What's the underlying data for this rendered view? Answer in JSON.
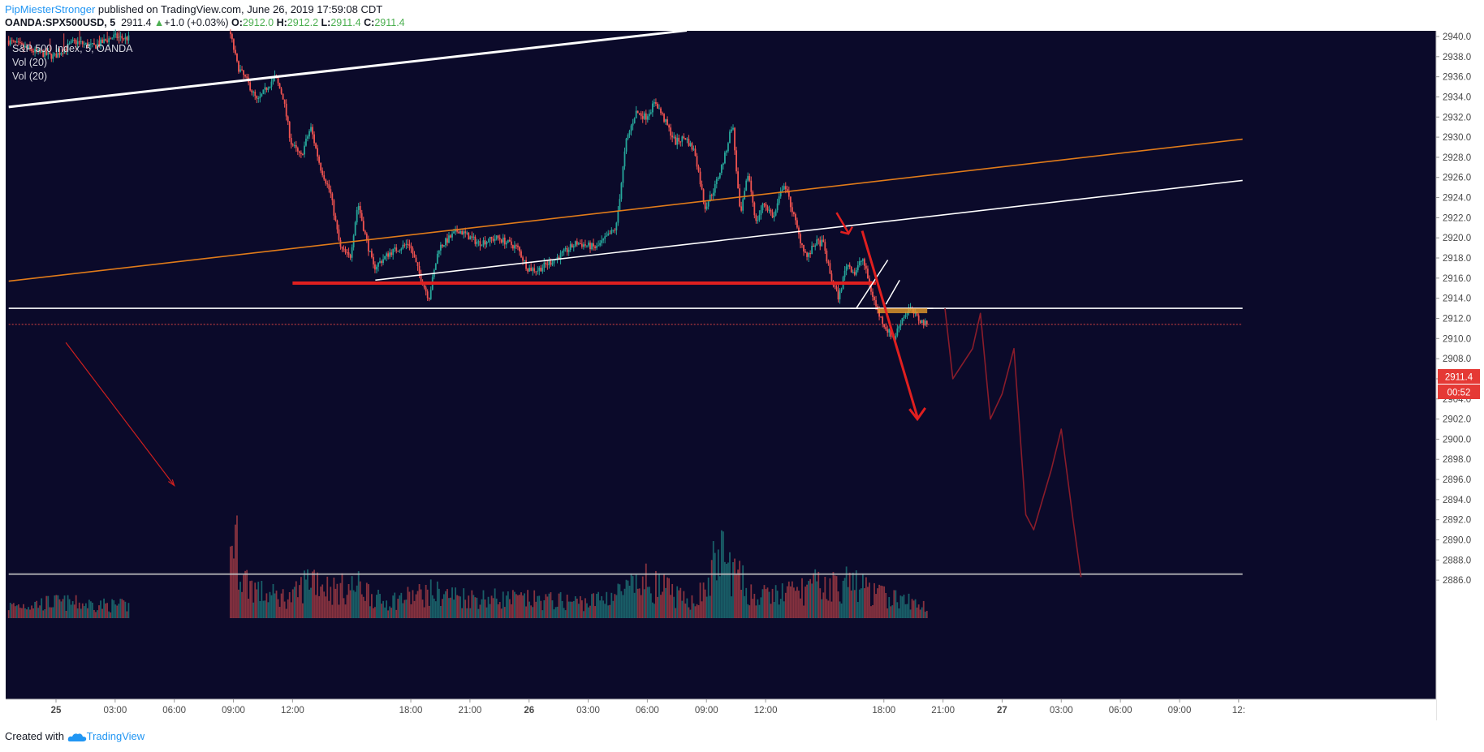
{
  "header": {
    "author": "PipMiesterStronger",
    "published_text": "published on TradingView.com, June 26, 2019 17:59:08 CDT"
  },
  "symbol_line": {
    "symbol": "OANDA:SPX500USD, 5",
    "last": "2911.4",
    "change": "+1.0 (+0.03%)",
    "o_label": "O:",
    "o_value": "2912.0",
    "h_label": "H:",
    "h_value": "2912.2",
    "l_label": "L:",
    "l_value": "2911.4",
    "c_label": "C:",
    "c_value": "2911.4"
  },
  "legend": {
    "title": "S&P 500 Index, 5, OANDA",
    "ind1": "Vol (20)",
    "ind2": "Vol (20)"
  },
  "price_tags": {
    "price": "2911.4",
    "countdown": "00:52"
  },
  "footer": {
    "created": "Created with",
    "brand": "TradingView"
  },
  "chart_data": {
    "type": "candlestick",
    "title": "S&P 500 Index, 5, OANDA",
    "ylim": [
      2884.5,
      2941.0
    ],
    "y_ticks": [
      "2940.0",
      "2938.0",
      "2936.0",
      "2934.0",
      "2932.0",
      "2930.0",
      "2928.0",
      "2926.0",
      "2924.0",
      "2922.0",
      "2920.0",
      "2918.0",
      "2916.0",
      "2914.0",
      "2912.0",
      "2910.0",
      "2908.0",
      "2906.0",
      "2904.0",
      "2902.0",
      "2900.0",
      "2898.0",
      "2896.0",
      "2894.0",
      "2892.0",
      "2890.0",
      "2888.0",
      "2886.0"
    ],
    "x_ticks": [
      {
        "label": "25",
        "t": 0.0
      },
      {
        "label": "03:00",
        "t": 3.0
      },
      {
        "label": "06:00",
        "t": 6.0
      },
      {
        "label": "09:00",
        "t": 9.0
      },
      {
        "label": "12:00",
        "t": 12.0
      },
      {
        "label": "18:00",
        "t": 18.0
      },
      {
        "label": "21:00",
        "t": 21.0
      },
      {
        "label": "26",
        "t": 24.0
      },
      {
        "label": "03:00",
        "t": 27.0
      },
      {
        "label": "06:00",
        "t": 30.0
      },
      {
        "label": "09:00",
        "t": 33.0
      },
      {
        "label": "12:00",
        "t": 36.0
      },
      {
        "label": "18:00",
        "t": 42.0
      },
      {
        "label": "21:00",
        "t": 45.0
      },
      {
        "label": "27",
        "t": 48.0
      },
      {
        "label": "03:00",
        "t": 51.0
      },
      {
        "label": "06:00",
        "t": 54.0
      },
      {
        "label": "09:00",
        "t": 57.0
      },
      {
        "label": "12:",
        "t": 60.0
      }
    ],
    "price_path": [
      [
        -2.4,
        2939.6
      ],
      [
        -1.0,
        2938.5
      ],
      [
        0.0,
        2938.0
      ],
      [
        1.0,
        2939.5
      ],
      [
        2.0,
        2939.0
      ],
      [
        3.0,
        2940.0
      ],
      [
        3.6,
        2939.8
      ],
      [
        8.9,
        2940.5
      ],
      [
        9.3,
        2937.0
      ],
      [
        9.8,
        2935.5
      ],
      [
        10.3,
        2933.5
      ],
      [
        10.8,
        2935.0
      ],
      [
        11.2,
        2936.0
      ],
      [
        11.6,
        2934.0
      ],
      [
        12.0,
        2929.5
      ],
      [
        12.5,
        2928.0
      ],
      [
        13.0,
        2931.0
      ],
      [
        13.5,
        2927.0
      ],
      [
        14.0,
        2924.5
      ],
      [
        14.5,
        2919.0
      ],
      [
        15.0,
        2918.0
      ],
      [
        15.4,
        2923.5
      ],
      [
        15.8,
        2920.0
      ],
      [
        16.2,
        2917.0
      ],
      [
        17.0,
        2918.5
      ],
      [
        18.0,
        2919.5
      ],
      [
        18.5,
        2916.5
      ],
      [
        19.0,
        2914.0
      ],
      [
        19.5,
        2919.0
      ],
      [
        20.5,
        2920.8
      ],
      [
        21.5,
        2919.5
      ],
      [
        22.5,
        2920.0
      ],
      [
        23.5,
        2919.0
      ],
      [
        24.0,
        2917.0
      ],
      [
        24.5,
        2916.8
      ],
      [
        25.5,
        2918.0
      ],
      [
        26.5,
        2919.5
      ],
      [
        27.5,
        2919.0
      ],
      [
        28.5,
        2921.0
      ],
      [
        29.0,
        2929.5
      ],
      [
        29.5,
        2932.5
      ],
      [
        30.0,
        2932.0
      ],
      [
        30.5,
        2933.5
      ],
      [
        31.0,
        2931.5
      ],
      [
        31.5,
        2929.5
      ],
      [
        32.0,
        2930.0
      ],
      [
        32.5,
        2928.5
      ],
      [
        33.0,
        2923.0
      ],
      [
        33.5,
        2925.0
      ],
      [
        34.0,
        2928.0
      ],
      [
        34.4,
        2931.5
      ],
      [
        34.8,
        2922.0
      ],
      [
        35.2,
        2926.5
      ],
      [
        35.6,
        2921.5
      ],
      [
        36.0,
        2923.5
      ],
      [
        36.5,
        2922.0
      ],
      [
        37.0,
        2925.5
      ],
      [
        37.4,
        2923.0
      ],
      [
        37.8,
        2920.0
      ],
      [
        38.2,
        2918.0
      ],
      [
        38.6,
        2919.5
      ],
      [
        39.0,
        2919.5
      ],
      [
        39.4,
        2916.0
      ],
      [
        39.8,
        2914.0
      ],
      [
        40.2,
        2917.5
      ],
      [
        40.6,
        2916.5
      ],
      [
        41.0,
        2918.0
      ],
      [
        41.4,
        2915.0
      ],
      [
        41.8,
        2912.5
      ],
      [
        42.2,
        2911.0
      ],
      [
        42.6,
        2910.0
      ],
      [
        43.0,
        2912.0
      ],
      [
        43.4,
        2913.0
      ],
      [
        43.8,
        2912.0
      ],
      [
        44.2,
        2911.4
      ]
    ],
    "volume_path": [
      [
        -2.4,
        1.5
      ],
      [
        0.0,
        2.0
      ],
      [
        3.0,
        1.6
      ],
      [
        6.0,
        1.4
      ],
      [
        8.5,
        2.5
      ],
      [
        9.0,
        11.0
      ],
      [
        9.5,
        5.0
      ],
      [
        10.5,
        3.0
      ],
      [
        12.0,
        2.5
      ],
      [
        13.0,
        5.5
      ],
      [
        14.0,
        3.5
      ],
      [
        15.5,
        4.0
      ],
      [
        16.5,
        2.0
      ],
      [
        19.0,
        3.2
      ],
      [
        21.0,
        2.6
      ],
      [
        24.0,
        2.3
      ],
      [
        27.0,
        2.0
      ],
      [
        29.0,
        3.5
      ],
      [
        30.0,
        4.5
      ],
      [
        31.0,
        3.5
      ],
      [
        32.0,
        2.0
      ],
      [
        33.0,
        3.5
      ],
      [
        33.6,
        8.5
      ],
      [
        34.0,
        7.0
      ],
      [
        34.6,
        5.0
      ],
      [
        35.5,
        2.5
      ],
      [
        36.5,
        3.0
      ],
      [
        37.5,
        3.3
      ],
      [
        38.5,
        4.0
      ],
      [
        39.5,
        4.0
      ],
      [
        40.5,
        4.5
      ],
      [
        41.5,
        3.0
      ],
      [
        42.5,
        2.5
      ],
      [
        44.2,
        1.5
      ]
    ],
    "volume_ylim": [
      0,
      14
    ],
    "trend_lines": [
      {
        "name": "upper-channel-white",
        "color": "#ffffff",
        "points": [
          [
            -2.4,
            2933.0
          ],
          [
            32.0,
            2940.6
          ]
        ]
      },
      {
        "name": "orange-channel",
        "color": "#e07b1a",
        "points": [
          [
            -2.4,
            2915.7
          ],
          [
            60.2,
            2929.8
          ]
        ]
      },
      {
        "name": "lower-channel-white",
        "color": "#ffffff",
        "points": [
          [
            16.2,
            2915.8
          ],
          [
            60.2,
            2925.7
          ]
        ]
      },
      {
        "name": "red-support",
        "color": "#e01f1f",
        "points": [
          [
            12.0,
            2915.5
          ],
          [
            41.6,
            2915.5
          ]
        ]
      },
      {
        "name": "white-horizontal",
        "color": "#ffffff",
        "points": [
          [
            -2.4,
            2913.0
          ],
          [
            60.2,
            2913.0
          ]
        ]
      },
      {
        "name": "volume-level",
        "color": "#c8c8c8",
        "points": [
          [
            -2.4,
            2886.6
          ],
          [
            60.2,
            2886.6
          ]
        ]
      },
      {
        "name": "price-level",
        "color": "#d44",
        "points": [
          [
            -2.4,
            2911.4
          ],
          [
            60.2,
            2911.4
          ]
        ]
      }
    ],
    "projection_path": [
      [
        45.1,
        2913.0
      ],
      [
        45.5,
        2906.0
      ],
      [
        46.5,
        2909.0
      ],
      [
        46.9,
        2912.5
      ],
      [
        47.4,
        2902.0
      ],
      [
        48.0,
        2904.5
      ],
      [
        48.6,
        2909.0
      ],
      [
        49.2,
        2892.5
      ],
      [
        49.6,
        2891.0
      ],
      [
        50.5,
        2897.0
      ],
      [
        51.0,
        2901.0
      ],
      [
        51.6,
        2892.0
      ],
      [
        52.0,
        2886.3
      ]
    ],
    "current_price": 2911.4
  }
}
